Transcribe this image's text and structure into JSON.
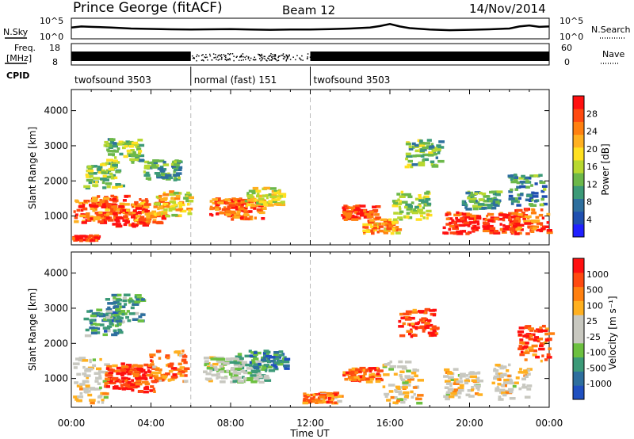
{
  "header": {
    "station": "Prince George (fitACF)",
    "beam": "Beam 12",
    "date": "14/Nov/2014"
  },
  "side_labels": {
    "nsky": "N.Sky",
    "freq_line1": "Freq.",
    "freq_line2": "[MHz]",
    "cpid": "CPID",
    "nsearch": "N.Search",
    "nave": "Nave"
  },
  "time_axis": {
    "label": "Time UT",
    "ticks": [
      "00:00",
      "04:00",
      "08:00",
      "12:00",
      "16:00",
      "20:00",
      "00:00"
    ]
  },
  "chart_data": [
    {
      "type": "line",
      "name": "noise",
      "left_axis": {
        "title": "N.Sky",
        "ticks": [
          "10^5",
          "10^0"
        ]
      },
      "right_axis": {
        "title": "N.Search",
        "ticks": [
          "10^5",
          "10^0"
        ]
      },
      "x_range_hours": [
        0,
        24
      ],
      "series": [
        {
          "x_hours": [
            0,
            0.5,
            1,
            2,
            3,
            4,
            5,
            6,
            7,
            8,
            9,
            10,
            11,
            12,
            13,
            14,
            15,
            15.5,
            16,
            16.5,
            17,
            18,
            19,
            20,
            21,
            22,
            22.5,
            23,
            23.5,
            24
          ],
          "level": [
            0.55,
            0.6,
            0.58,
            0.55,
            0.5,
            0.48,
            0.46,
            0.45,
            0.46,
            0.47,
            0.45,
            0.44,
            0.45,
            0.45,
            0.47,
            0.5,
            0.55,
            0.62,
            0.72,
            0.6,
            0.52,
            0.45,
            0.42,
            0.44,
            0.46,
            0.5,
            0.6,
            0.65,
            0.58,
            0.6
          ]
        }
      ]
    },
    {
      "type": "line",
      "name": "frequency-nave",
      "left_axis": {
        "title": "Freq. [MHz]",
        "ticks": [
          "18",
          "8"
        ]
      },
      "right_axis": {
        "title": "Nave",
        "ticks": [
          "60",
          "0"
        ]
      },
      "x_range_hours": [
        0,
        24
      ],
      "series": [
        {
          "x_hours": [
            0,
            6,
            12,
            24
          ],
          "level": [
            0.85,
            0.55,
            0.85,
            0.85
          ]
        }
      ]
    },
    {
      "type": "table",
      "name": "cpid",
      "segments": [
        {
          "label": "twofsound 3503",
          "start_hour": 0,
          "end_hour": 6
        },
        {
          "label": "normal (fast) 151",
          "start_hour": 6,
          "end_hour": 12
        },
        {
          "label": "twofsound 3503",
          "start_hour": 12,
          "end_hour": 24
        }
      ]
    },
    {
      "type": "heatmap",
      "name": "power",
      "ylabel": "Slant Range [km]",
      "yticks": [
        1000,
        2000,
        3000,
        4000
      ],
      "ylim": [
        180,
        4600
      ],
      "xlim_hours": [
        0,
        24
      ],
      "colorbar": {
        "title": "Power [dB]",
        "ticks": [
          "4",
          "8",
          "12",
          "16",
          "20",
          "24",
          "28"
        ],
        "colors": [
          "#2020ff",
          "#1f4fb0",
          "#2e6f9e",
          "#3c9a78",
          "#6cb84a",
          "#b8d830",
          "#ffe020",
          "#ffb020",
          "#ff8010",
          "#ff4a10",
          "#ff1010"
        ]
      },
      "blobs": [
        {
          "h": 0.3,
          "r0": 300,
          "r1": 450,
          "v": 0.9
        },
        {
          "h": 1.0,
          "r0": 800,
          "r1": 1500,
          "v": 0.85
        },
        {
          "h": 1.8,
          "r0": 900,
          "r1": 1600,
          "v": 0.8
        },
        {
          "h": 2.8,
          "r0": 700,
          "r1": 1300,
          "v": 0.95
        },
        {
          "h": 3.8,
          "r0": 800,
          "r1": 1500,
          "v": 0.75
        },
        {
          "h": 5.0,
          "r0": 1000,
          "r1": 1700,
          "v": 0.6
        },
        {
          "h": 1.5,
          "r0": 1800,
          "r1": 2500,
          "v": 0.45
        },
        {
          "h": 2.5,
          "r0": 2500,
          "r1": 3200,
          "v": 0.4
        },
        {
          "h": 4.5,
          "r0": 2000,
          "r1": 2600,
          "v": 0.35
        },
        {
          "h": 7.8,
          "r0": 1000,
          "r1": 1500,
          "v": 0.85
        },
        {
          "h": 8.8,
          "r0": 900,
          "r1": 1500,
          "v": 0.8
        },
        {
          "h": 9.6,
          "r0": 1300,
          "r1": 1800,
          "v": 0.55
        },
        {
          "h": 14.4,
          "r0": 900,
          "r1": 1300,
          "v": 0.9
        },
        {
          "h": 15.5,
          "r0": 500,
          "r1": 900,
          "v": 0.7
        },
        {
          "h": 17.0,
          "r0": 900,
          "r1": 1700,
          "v": 0.5
        },
        {
          "h": 17.6,
          "r0": 2400,
          "r1": 3200,
          "v": 0.4
        },
        {
          "h": 19.5,
          "r0": 500,
          "r1": 1100,
          "v": 0.95
        },
        {
          "h": 21.5,
          "r0": 500,
          "r1": 1100,
          "v": 0.9
        },
        {
          "h": 23.0,
          "r0": 500,
          "r1": 1200,
          "v": 0.85
        },
        {
          "h": 20.5,
          "r0": 1200,
          "r1": 1700,
          "v": 0.35
        },
        {
          "h": 22.8,
          "r0": 1300,
          "r1": 2200,
          "v": 0.3
        }
      ]
    },
    {
      "type": "heatmap",
      "name": "velocity",
      "ylabel": "Slant Range [km]",
      "yticks": [
        1000,
        2000,
        3000,
        4000
      ],
      "ylim": [
        180,
        4600
      ],
      "xlim_hours": [
        0,
        24
      ],
      "colorbar": {
        "title": "Velocity [m s⁻¹]",
        "ticks": [
          "1000",
          "500",
          "100",
          "25",
          "-25",
          "-100",
          "-500",
          "-1000"
        ],
        "colors": [
          "#ff1010",
          "#ff4a10",
          "#ff8010",
          "#ffb020",
          "#c8c8c0",
          "#c8c8c0",
          "#6cc040",
          "#3c9a78",
          "#2e6f9e",
          "#2050c0"
        ]
      },
      "blobs": [
        {
          "h": 0.8,
          "r0": 300,
          "r1": 1600,
          "v": 0.45
        },
        {
          "h": 2.5,
          "r0": 700,
          "r1": 1500,
          "v": 0.15
        },
        {
          "h": 3.3,
          "r0": 600,
          "r1": 1400,
          "v": 0.1
        },
        {
          "h": 4.8,
          "r0": 900,
          "r1": 1800,
          "v": 0.25
        },
        {
          "h": 1.5,
          "r0": 2200,
          "r1": 3000,
          "v": 0.75
        },
        {
          "h": 2.6,
          "r0": 2600,
          "r1": 3400,
          "v": 0.7
        },
        {
          "h": 7.5,
          "r0": 900,
          "r1": 1600,
          "v": 0.55
        },
        {
          "h": 8.8,
          "r0": 900,
          "r1": 1700,
          "v": 0.6
        },
        {
          "h": 9.8,
          "r0": 1200,
          "r1": 1800,
          "v": 0.8
        },
        {
          "h": 14.5,
          "r0": 900,
          "r1": 1300,
          "v": 0.2
        },
        {
          "h": 12.5,
          "r0": 300,
          "r1": 600,
          "v": 0.25
        },
        {
          "h": 16.5,
          "r0": 300,
          "r1": 1500,
          "v": 0.45
        },
        {
          "h": 19.5,
          "r0": 400,
          "r1": 1300,
          "v": 0.45
        },
        {
          "h": 22.0,
          "r0": 400,
          "r1": 1400,
          "v": 0.45
        },
        {
          "h": 17.3,
          "r0": 2200,
          "r1": 3000,
          "v": 0.15
        },
        {
          "h": 23.3,
          "r0": 1500,
          "r1": 2500,
          "v": 0.15
        }
      ]
    }
  ]
}
